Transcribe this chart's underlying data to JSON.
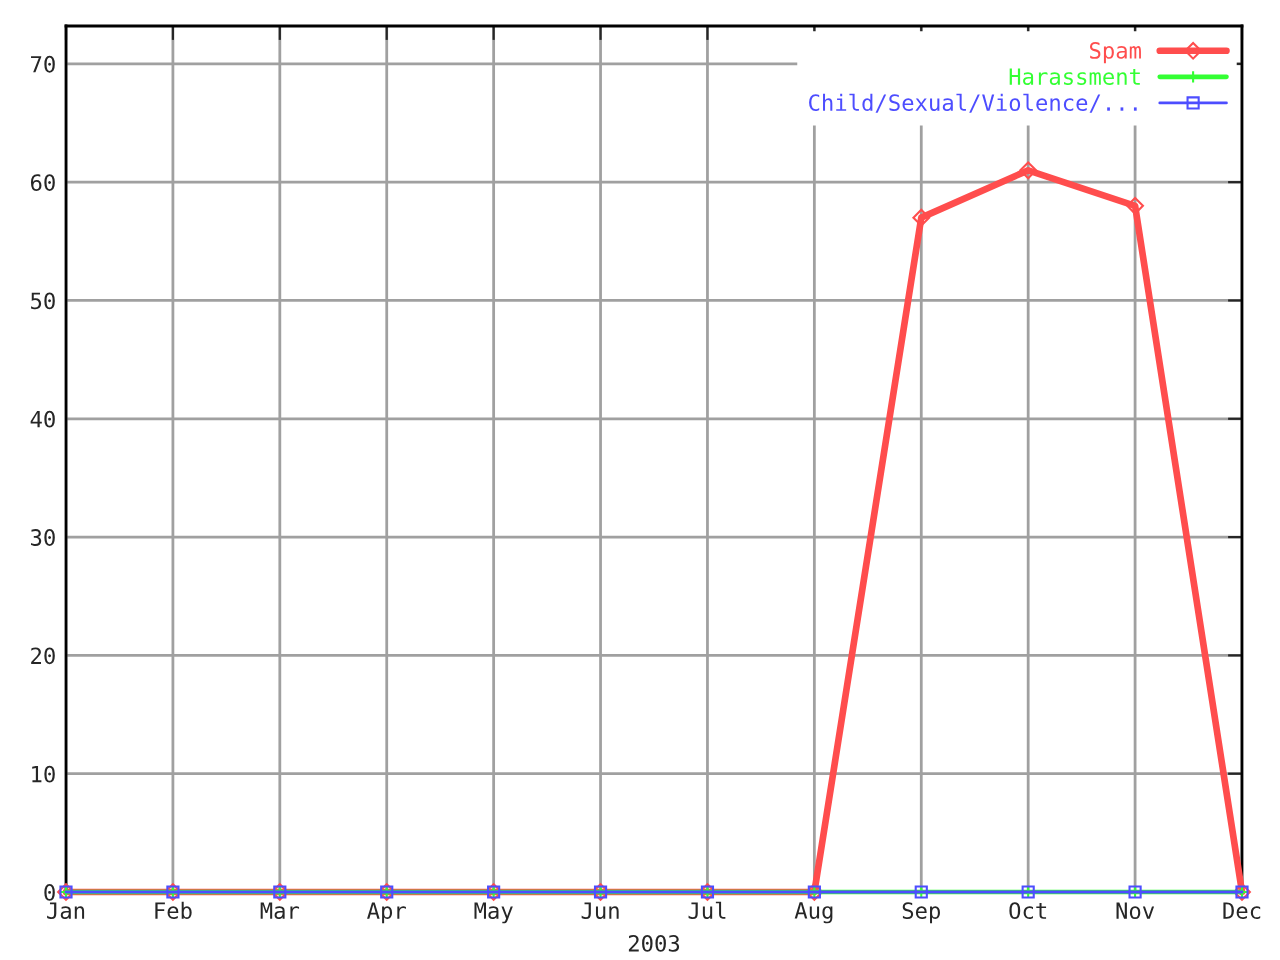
{
  "chart_data": {
    "type": "line",
    "xlabel": "2003",
    "categories": [
      "Jan",
      "Feb",
      "Mar",
      "Apr",
      "May",
      "Jun",
      "Jul",
      "Aug",
      "Sep",
      "Oct",
      "Nov",
      "Dec"
    ],
    "series": [
      {
        "name": "Spam",
        "color": "#ff4d4d",
        "marker": "diamond",
        "values": [
          0,
          0,
          0,
          0,
          0,
          0,
          0,
          0,
          57,
          61,
          58,
          0
        ]
      },
      {
        "name": "Harassment",
        "color": "#33ff33",
        "marker": "cross",
        "values": [
          0,
          0,
          0,
          0,
          0,
          0,
          0,
          0,
          0,
          0,
          0,
          0
        ]
      },
      {
        "name": "Child/Sexual/Violence/...",
        "color": "#4d4dff",
        "marker": "square",
        "values": [
          0,
          0,
          0,
          0,
          0,
          0,
          0,
          0,
          0,
          0,
          0,
          0
        ]
      }
    ],
    "ylim": [
      0,
      73.2
    ],
    "yticks": [
      0,
      10,
      20,
      30,
      40,
      50,
      60,
      70
    ],
    "grid": true,
    "legend": "top right"
  }
}
